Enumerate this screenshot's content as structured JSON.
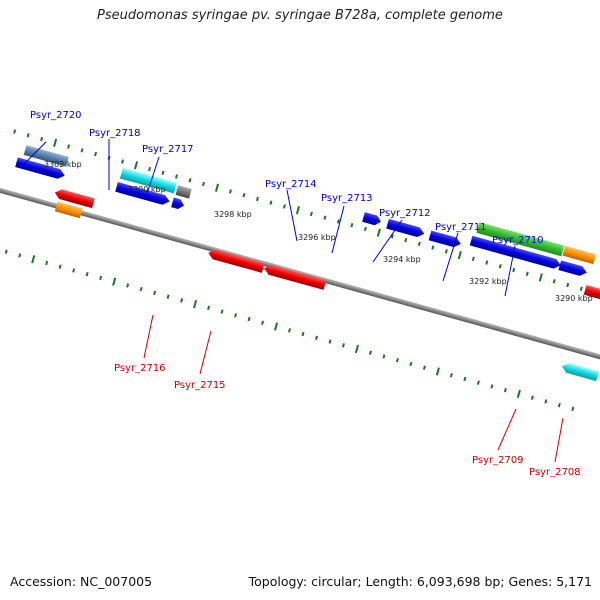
{
  "title": "Pseudomonas syringae pv. syringae B728a, complete genome",
  "footer": {
    "accession": "Accession: NC_007005",
    "summary": "Topology: circular; Length: 6,093,698 bp; Genes: 5,171"
  },
  "colors": {
    "backbone": "#8c8c8c",
    "tick": "#1a7a1a",
    "plus_label": "#0000cc",
    "minus_label": "#cc0000"
  },
  "axis_labels": [
    "3302 kbp",
    "3300 kbp",
    "3298 kbp",
    "3296 kbp",
    "3294 kbp",
    "3292 kbp",
    "3290 kbp"
  ],
  "plus_labels": [
    "Psyr_2720",
    "Psyr_2718",
    "Psyr_2717",
    "Psyr_2714",
    "Psyr_2713",
    "Psyr_2712",
    "Psyr_2711",
    "Psyr_2710"
  ],
  "minus_labels": [
    "Psyr_2716",
    "Psyr_2715",
    "Psyr_2709",
    "Psyr_2708"
  ]
}
